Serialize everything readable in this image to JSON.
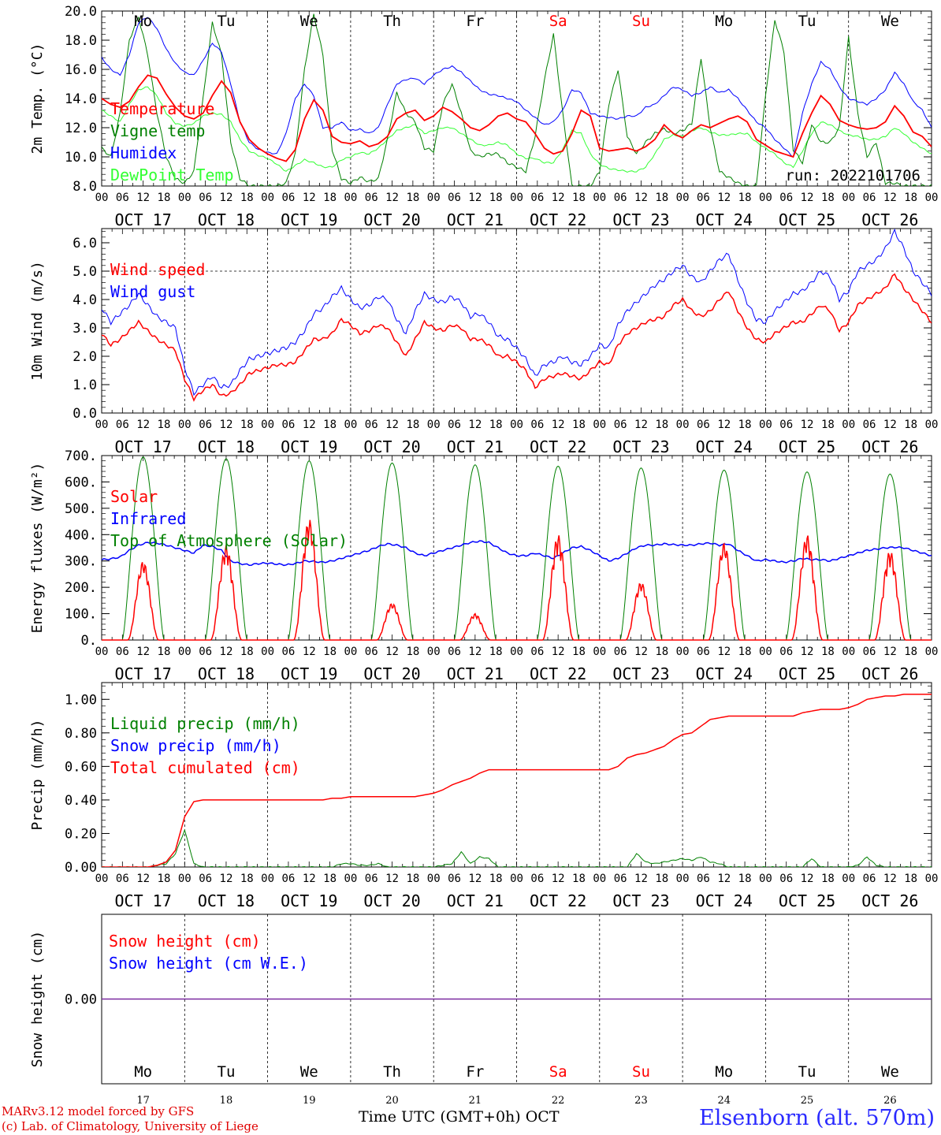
{
  "chart_data": [
    {
      "type": "line",
      "ylabel": "2m Temp. (°C)",
      "ylim": [
        8,
        20
      ],
      "yticks": [
        "8.0",
        "10.0",
        "12.0",
        "14.0",
        "16.0",
        "18.0",
        "20.0"
      ],
      "run_label": "run: 2022101706",
      "series": [
        {
          "name": "Temperature",
          "color": "#ff0000",
          "values": [
            14.0,
            13.6,
            13.4,
            13.8,
            14.8,
            15.6,
            15.4,
            14.3,
            13.4,
            12.8,
            12.6,
            13.0,
            14.2,
            15.2,
            14.4,
            12.4,
            11.2,
            10.6,
            10.2,
            9.9,
            9.7,
            10.5,
            12.6,
            13.9,
            13.2,
            11.4,
            11.0,
            10.9,
            11.1,
            10.7,
            10.9,
            11.4,
            12.6,
            13.0,
            13.2,
            12.5,
            12.8,
            13.4,
            13.1,
            12.6,
            12.0,
            11.8,
            12.2,
            12.8,
            13.0,
            12.6,
            12.4,
            11.6,
            10.6,
            10.2,
            10.4,
            11.6,
            13.2,
            12.8,
            10.6,
            10.4,
            10.5,
            10.6,
            10.4,
            10.7,
            11.2,
            12.2,
            11.6,
            11.3,
            11.8,
            12.2,
            12.0,
            12.3,
            12.6,
            12.8,
            12.4,
            11.2,
            10.8,
            10.4,
            10.2,
            10.0,
            11.6,
            13.0,
            14.2,
            13.6,
            12.5,
            12.2,
            12.0,
            11.9,
            12.0,
            12.4,
            13.5,
            12.8,
            11.7,
            11.4,
            10.7
          ]
        },
        {
          "name": "Vigne temp",
          "color": "#008000",
          "values": [
            10.6,
            10.0,
            13.0,
            18.0,
            19.6,
            17.0,
            13.0,
            10.0,
            8.5,
            8.2,
            9.0,
            14.0,
            19.2,
            17.0,
            11.0,
            8.5,
            8.0,
            8.0,
            8.0,
            8.0,
            8.2,
            10.2,
            16.0,
            19.8,
            17.0,
            10.5,
            8.5,
            8.2,
            8.6,
            8.3,
            8.5,
            11.2,
            14.4,
            13.0,
            12.4,
            10.6,
            10.4,
            13.6,
            15.0,
            13.0,
            10.4,
            10.0,
            10.2,
            10.2,
            9.6,
            9.3,
            9.0,
            11.4,
            15.2,
            18.4,
            13.0,
            8.0,
            8.0,
            8.0,
            9.0,
            13.6,
            16.0,
            11.4,
            10.2,
            11.0,
            11.6,
            11.9,
            11.6,
            11.8,
            12.3,
            16.8,
            12.0,
            9.0,
            8.6,
            8.2,
            8.0,
            8.0,
            14.2,
            19.4,
            17.2,
            10.5,
            9.6,
            12.2,
            11.0,
            11.0,
            12.0,
            18.2,
            13.0,
            10.0,
            11.0,
            8.2,
            8.2,
            8.0,
            8.0,
            8.0,
            8.0
          ]
        },
        {
          "name": "Humidex",
          "color": "#0000ff",
          "values": [
            16.8,
            16.0,
            15.6,
            17.0,
            19.2,
            19.6,
            18.8,
            17.4,
            16.4,
            15.8,
            15.6,
            16.6,
            17.8,
            17.2,
            15.0,
            12.4,
            11.0,
            10.5,
            10.3,
            10.2,
            11.6,
            14.0,
            15.0,
            14.2,
            12.0,
            12.0,
            12.4,
            11.8,
            11.9,
            11.6,
            12.0,
            13.6,
            15.0,
            15.3,
            15.4,
            15.0,
            15.6,
            16.0,
            16.2,
            15.8,
            15.2,
            14.6,
            14.3,
            14.2,
            14.0,
            13.8,
            13.2,
            12.7,
            12.2,
            12.4,
            13.2,
            14.6,
            14.4,
            13.0,
            12.8,
            12.7,
            12.6,
            12.8,
            12.8,
            13.4,
            13.6,
            14.2,
            14.8,
            14.6,
            14.2,
            14.4,
            14.8,
            14.4,
            14.6,
            14.0,
            13.2,
            12.4,
            12.0,
            11.2,
            10.6,
            10.0,
            13.0,
            15.0,
            16.5,
            16.0,
            14.8,
            14.0,
            13.8,
            13.6,
            14.0,
            14.6,
            15.8,
            15.0,
            13.8,
            13.2,
            12.0
          ]
        },
        {
          "name": "DewPoint Temp",
          "color": "#32ff32",
          "values": [
            13.2,
            12.8,
            12.4,
            13.6,
            14.6,
            14.8,
            14.2,
            13.0,
            12.3,
            12.1,
            12.3,
            12.8,
            13.0,
            12.9,
            12.4,
            11.2,
            10.4,
            10.1,
            9.9,
            9.5,
            9.0,
            9.4,
            9.8,
            9.6,
            9.3,
            9.3,
            9.8,
            10.0,
            10.3,
            10.2,
            10.6,
            11.2,
            11.8,
            12.0,
            12.2,
            11.6,
            11.8,
            12.0,
            12.0,
            11.6,
            11.2,
            10.8,
            10.8,
            11.0,
            10.8,
            10.2,
            9.9,
            9.9,
            9.6,
            9.6,
            10.5,
            11.8,
            11.6,
            10.2,
            9.5,
            9.2,
            9.1,
            9.0,
            9.0,
            9.3,
            10.2,
            11.2,
            11.5,
            11.4,
            11.8,
            12.0,
            11.7,
            11.5,
            11.5,
            11.6,
            11.6,
            11.0,
            10.6,
            10.2,
            9.6,
            9.3,
            10.4,
            11.6,
            12.4,
            12.2,
            11.8,
            11.5,
            11.4,
            11.2,
            11.2,
            11.4,
            12.0,
            11.6,
            11.0,
            10.6,
            10.2
          ]
        }
      ]
    },
    {
      "type": "line",
      "ylabel": "10m Wind (m/s)",
      "ylim": [
        0,
        6.5
      ],
      "yticks": [
        "0.0",
        "1.0",
        "2.0",
        "3.0",
        "4.0",
        "5.0",
        "6.0"
      ],
      "reference_line": 5.0,
      "series": [
        {
          "name": "Wind speed",
          "color": "#ff0000",
          "values": [
            2.8,
            2.4,
            2.6,
            2.9,
            3.2,
            2.9,
            2.6,
            2.4,
            2.2,
            1.2,
            0.5,
            0.8,
            1.0,
            0.6,
            0.7,
            1.0,
            1.4,
            1.5,
            1.6,
            1.7,
            1.7,
            1.8,
            2.2,
            2.6,
            2.6,
            2.8,
            3.3,
            3.1,
            2.8,
            2.9,
            3.1,
            3.0,
            2.5,
            2.0,
            2.6,
            3.2,
            3.0,
            2.9,
            3.1,
            3.0,
            2.6,
            2.6,
            2.4,
            2.0,
            2.0,
            1.8,
            1.5,
            0.9,
            1.2,
            1.3,
            1.4,
            1.3,
            1.2,
            1.5,
            1.8,
            1.7,
            2.4,
            2.8,
            3.0,
            3.2,
            3.3,
            3.4,
            3.8,
            4.0,
            3.6,
            3.4,
            3.6,
            4.0,
            4.3,
            3.6,
            3.0,
            2.6,
            2.5,
            2.8,
            3.0,
            3.2,
            3.2,
            3.5,
            3.8,
            3.6,
            2.9,
            3.2,
            3.8,
            4.0,
            4.2,
            4.4,
            4.9,
            4.4,
            4.0,
            3.6,
            3.2
          ]
        },
        {
          "name": "Wind gust",
          "color": "#0000ff",
          "values": [
            3.7,
            3.2,
            3.5,
            3.8,
            4.2,
            3.8,
            3.4,
            3.2,
            3.0,
            1.6,
            0.7,
            1.0,
            1.3,
            0.9,
            1.0,
            1.5,
            1.9,
            2.0,
            2.1,
            2.2,
            2.3,
            2.5,
            2.9,
            3.5,
            3.7,
            4.1,
            4.4,
            4.0,
            3.7,
            3.8,
            4.1,
            4.0,
            3.3,
            2.8,
            3.6,
            4.2,
            4.0,
            3.9,
            4.1,
            3.9,
            3.4,
            3.5,
            3.2,
            2.7,
            2.6,
            2.3,
            1.9,
            1.3,
            1.7,
            1.8,
            2.0,
            1.8,
            1.7,
            2.0,
            2.4,
            2.3,
            3.1,
            3.6,
            3.9,
            4.2,
            4.5,
            4.7,
            5.0,
            5.2,
            4.8,
            4.6,
            5.0,
            5.4,
            5.6,
            4.7,
            3.9,
            3.3,
            3.2,
            3.6,
            3.9,
            4.2,
            4.3,
            4.6,
            5.0,
            4.8,
            4.0,
            4.3,
            5.0,
            5.2,
            5.4,
            5.8,
            6.4,
            5.8,
            5.0,
            4.6,
            4.2
          ]
        }
      ]
    },
    {
      "type": "line",
      "ylabel": "Energy fluxes (W/m²)",
      "ylim": [
        0,
        700
      ],
      "yticks": [
        "0.",
        "100.",
        "200.",
        "300.",
        "400.",
        "500.",
        "600.",
        "700."
      ],
      "series": [
        {
          "name": "Solar",
          "color": "#ff0000",
          "daily_peak_wm2": [
            300,
            360,
            460,
            140,
            100,
            400,
            220,
            370,
            400,
            340
          ]
        },
        {
          "name": "Infrared",
          "color": "#0000ff",
          "values": [
            305,
            308,
            315,
            340,
            360,
            370,
            368,
            360,
            350,
            340,
            330,
            360,
            355,
            340,
            300,
            290,
            285,
            290,
            292,
            288,
            285,
            290,
            300,
            298,
            295,
            300,
            310,
            320,
            330,
            340,
            355,
            365,
            360,
            350,
            330,
            320,
            330,
            340,
            350,
            360,
            370,
            375,
            370,
            350,
            330,
            320,
            320,
            330,
            320,
            310,
            330,
            350,
            355,
            340,
            320,
            300,
            310,
            330,
            350,
            360,
            360,
            365,
            362,
            360,
            360,
            365,
            368,
            360,
            365,
            340,
            320,
            300,
            305,
            300,
            295,
            300,
            310,
            305,
            305,
            300,
            310,
            320,
            330,
            340,
            345,
            350,
            352,
            350,
            340,
            330,
            320
          ]
        },
        {
          "name": "Top of Atmosphere (Solar)",
          "color": "#008000",
          "daily_peak_wm2": [
            695,
            688,
            680,
            672,
            665,
            660,
            653,
            645,
            638,
            630
          ]
        }
      ]
    },
    {
      "type": "line",
      "ylabel": "Precip (mm/h)",
      "ylim": [
        0,
        1.1
      ],
      "yticks": [
        "0.00",
        "0.20",
        "0.40",
        "0.60",
        "0.80",
        "1.00"
      ],
      "series": [
        {
          "name": "Liquid precip (mm/h)",
          "color": "#008000",
          "values": [
            0,
            0,
            0,
            0,
            0,
            0,
            0.01,
            0.02,
            0.08,
            0.22,
            0.02,
            0,
            0,
            0,
            0,
            0,
            0,
            0,
            0,
            0,
            0,
            0,
            0,
            0,
            0,
            0,
            0.02,
            0.02,
            0.01,
            0.01,
            0.02,
            0,
            0,
            0,
            0,
            0,
            0,
            0.01,
            0.02,
            0.09,
            0.02,
            0.06,
            0.05,
            0,
            0,
            0,
            0,
            0,
            0,
            0,
            0,
            0,
            0,
            0,
            0,
            0,
            0,
            0,
            0.08,
            0.03,
            0.02,
            0.03,
            0.04,
            0.05,
            0.04,
            0.06,
            0.03,
            0.02,
            0,
            0,
            0,
            0,
            0,
            0,
            0,
            0,
            0,
            0.05,
            0,
            0,
            0,
            0,
            0.01,
            0.06,
            0.01,
            0,
            0,
            0,
            0,
            0,
            0
          ]
        },
        {
          "name": "Snow precip (mm/h)",
          "color": "#0000ff",
          "values": []
        },
        {
          "name": "Total cumulated (cm)",
          "color": "#ff0000",
          "values": [
            0,
            0,
            0,
            0,
            0,
            0,
            0.01,
            0.03,
            0.1,
            0.3,
            0.39,
            0.4,
            0.4,
            0.4,
            0.4,
            0.4,
            0.4,
            0.4,
            0.4,
            0.4,
            0.4,
            0.4,
            0.4,
            0.4,
            0.4,
            0.41,
            0.41,
            0.42,
            0.42,
            0.42,
            0.42,
            0.42,
            0.42,
            0.42,
            0.42,
            0.43,
            0.44,
            0.46,
            0.49,
            0.51,
            0.53,
            0.56,
            0.58,
            0.58,
            0.58,
            0.58,
            0.58,
            0.58,
            0.58,
            0.58,
            0.58,
            0.58,
            0.58,
            0.58,
            0.58,
            0.58,
            0.6,
            0.65,
            0.67,
            0.68,
            0.7,
            0.72,
            0.76,
            0.79,
            0.8,
            0.84,
            0.88,
            0.89,
            0.9,
            0.9,
            0.9,
            0.9,
            0.9,
            0.9,
            0.9,
            0.9,
            0.92,
            0.93,
            0.94,
            0.94,
            0.94,
            0.95,
            0.97,
            1.0,
            1.01,
            1.02,
            1.02,
            1.03,
            1.03,
            1.03,
            1.03
          ]
        }
      ]
    },
    {
      "type": "line",
      "ylabel": "Snow height (cm)",
      "ylim": [
        -1,
        1
      ],
      "yticks": [
        "0.00"
      ],
      "series": [
        {
          "name": "Snow height (cm)",
          "color": "#ff0000",
          "values": [
            0,
            0
          ]
        },
        {
          "name": "Snow height (cm W.E.)",
          "color": "#0000ff",
          "values": [
            0,
            0
          ]
        }
      ]
    }
  ],
  "x_axis": {
    "hour_ticks": [
      "00",
      "06",
      "12",
      "18"
    ],
    "final_tick": "00",
    "dates": [
      "OCT 17",
      "OCT 18",
      "OCT 19",
      "OCT 20",
      "OCT 21",
      "OCT 22",
      "OCT 23",
      "OCT 24",
      "OCT 25",
      "OCT 26"
    ],
    "weekdays": [
      "Mo",
      "Tu",
      "We",
      "Th",
      "Fr",
      "Sa",
      "Su",
      "Mo",
      "Tu",
      "We"
    ],
    "weekend_color": "#ff0000",
    "day_numbers": [
      "17",
      "18",
      "19",
      "20",
      "21",
      "22",
      "23",
      "24",
      "25",
      "26"
    ],
    "title": "Time UTC (GMT+0h) OCT"
  },
  "footer": {
    "model": "MARv3.12 model forced by GFS",
    "copyright": "(c) Lab. of Climatology, University of Liege",
    "location": "Elsenborn (alt. 570m)"
  }
}
